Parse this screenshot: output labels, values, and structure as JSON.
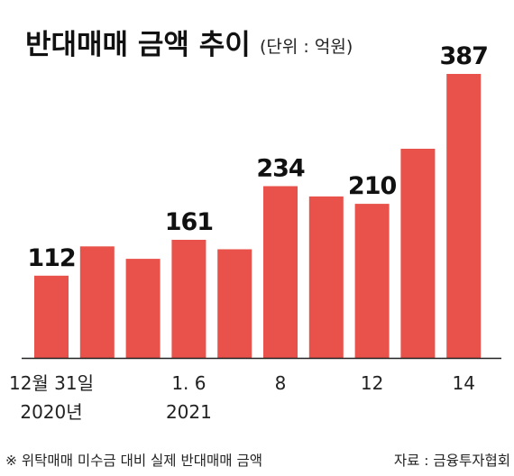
{
  "title": "반대매매 금액 추이",
  "unit": "(단위 : 억원)",
  "footnote": "※ 위탁매매 미수금 대비 실제 반대매매 금액",
  "source": "자료 : 금융투자협회",
  "colors": {
    "bar": "#e8524a",
    "axis": "#222222"
  },
  "chart_data": {
    "type": "bar",
    "title": "반대매매 금액 추이",
    "ylabel": "(단위 : 억원)",
    "ylim": [
      0,
      400
    ],
    "grid": false,
    "legend": "none",
    "values": [
      112,
      152,
      135,
      161,
      148,
      234,
      220,
      210,
      285,
      387
    ],
    "value_labels": [
      "112",
      "",
      "",
      "161",
      "",
      "234",
      "",
      "210",
      "",
      "387"
    ],
    "tick_labels": [
      [
        "12월 31일",
        "2020년"
      ],
      [],
      [],
      [
        "1. 6",
        "2021"
      ],
      [],
      [
        "8"
      ],
      [],
      [
        "12"
      ],
      [],
      [
        "14"
      ]
    ]
  }
}
